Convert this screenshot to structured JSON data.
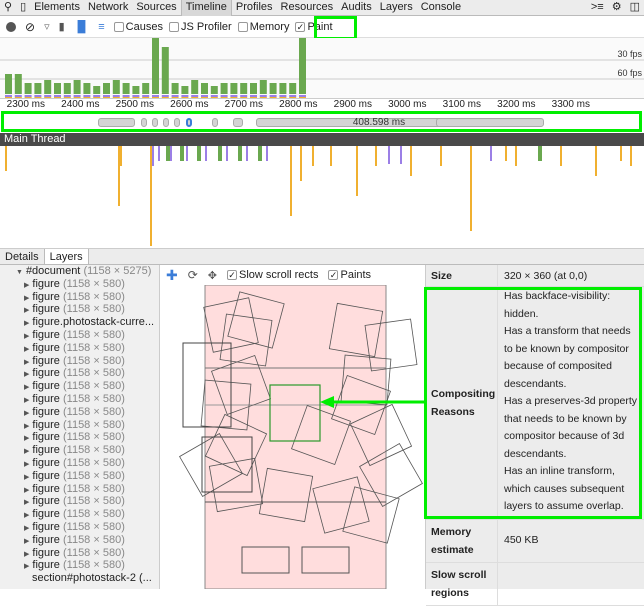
{
  "tabs": [
    "Elements",
    "Network",
    "Sources",
    "Timeline",
    "Profiles",
    "Resources",
    "Audits",
    "Layers",
    "Console"
  ],
  "selected_tab": "Timeline",
  "toolbar": {
    "checkboxes": [
      {
        "label": "Causes",
        "checked": false
      },
      {
        "label": "JS Profiler",
        "checked": false
      },
      {
        "label": "Memory",
        "checked": false
      },
      {
        "label": "Paint",
        "checked": true
      }
    ]
  },
  "overview": {
    "fps_labels": [
      "30 fps",
      "60 fps"
    ],
    "frame_heights": [
      0.4,
      0.4,
      0.25,
      0.25,
      0.3,
      0.25,
      0.25,
      0.3,
      0.25,
      0.2,
      0.25,
      0.3,
      0.25,
      0.2,
      0.25,
      1.0,
      0.85,
      0.25,
      0.2,
      0.3,
      0.25,
      0.2,
      0.25,
      0.25,
      0.25,
      0.25,
      0.3,
      0.25,
      0.25,
      0.25,
      1.0
    ]
  },
  "axis_ticks": [
    "2300 ms",
    "2400 ms",
    "2500 ms",
    "2600 ms",
    "2700 ms",
    "2800 ms",
    "2900 ms",
    "3000 ms",
    "3100 ms",
    "3200 ms",
    "3300 ms"
  ],
  "frames_strip": {
    "long_frame_label": "408.598 ms"
  },
  "main_thread": "Main Thread",
  "bottom_tabs": [
    "Details",
    "Layers"
  ],
  "selected_bottom_tab": "Layers",
  "tree": {
    "root": {
      "name": "#document",
      "size": "(1158 × 5275)"
    },
    "items": [
      {
        "name": "figure",
        "size": "(1158 × 580)"
      },
      {
        "name": "figure",
        "size": "(1158 × 580)"
      },
      {
        "name": "figure",
        "size": "(1158 × 580)"
      },
      {
        "name": "figure.photostack-curre...",
        "size": ""
      },
      {
        "name": "figure",
        "size": "(1158 × 580)"
      },
      {
        "name": "figure",
        "size": "(1158 × 580)"
      },
      {
        "name": "figure",
        "size": "(1158 × 580)"
      },
      {
        "name": "figure",
        "size": "(1158 × 580)"
      },
      {
        "name": "figure",
        "size": "(1158 × 580)"
      },
      {
        "name": "figure",
        "size": "(1158 × 580)"
      },
      {
        "name": "figure",
        "size": "(1158 × 580)"
      },
      {
        "name": "figure",
        "size": "(1158 × 580)"
      },
      {
        "name": "figure",
        "size": "(1158 × 580)"
      },
      {
        "name": "figure",
        "size": "(1158 × 580)"
      },
      {
        "name": "figure",
        "size": "(1158 × 580)"
      },
      {
        "name": "figure",
        "size": "(1158 × 580)"
      },
      {
        "name": "figure",
        "size": "(1158 × 580)"
      },
      {
        "name": "figure",
        "size": "(1158 × 580)"
      },
      {
        "name": "figure",
        "size": "(1158 × 580)"
      },
      {
        "name": "figure",
        "size": "(1158 × 580)"
      },
      {
        "name": "figure",
        "size": "(1158 × 580)"
      },
      {
        "name": "figure",
        "size": "(1158 × 580)"
      },
      {
        "name": "figure",
        "size": "(1158 × 580)"
      }
    ],
    "last": "section#photostack-2 (..."
  },
  "canvas_toolbar": {
    "slow_scroll": "Slow scroll rects",
    "paints": "Paints"
  },
  "props": {
    "size_label": "Size",
    "size_value": "320 × 360 (at 0,0)",
    "reasons_label": "Compositing Reasons",
    "reasons": [
      "Has backface-visibility: hidden.",
      "Has a transform that needs to be known by compositor because of composited descendants.",
      "Has a preserves-3d property that needs to be known by compositor because of 3d descendants.",
      "Has an inline transform, which causes subsequent layers to assume overlap."
    ],
    "memory_label": "Memory estimate",
    "memory_value": "450 KB",
    "slow_label": "Slow scroll regions"
  },
  "colors": {
    "highlight": "#00ee00",
    "scripting": "#f0b030",
    "rendering": "#9b7fe6",
    "painting": "#6aa84f",
    "layer_bg": "#ffdddd"
  }
}
